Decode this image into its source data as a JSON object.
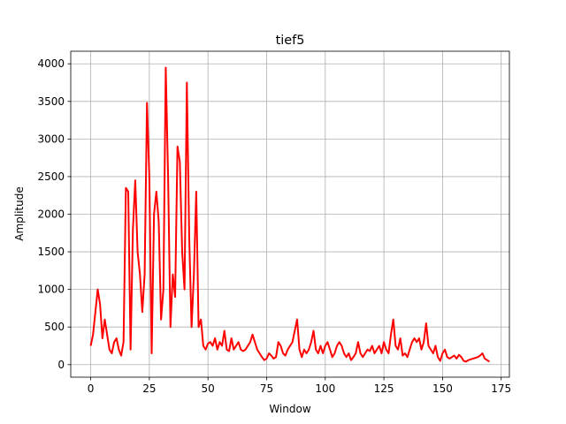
{
  "chart_data": {
    "type": "line",
    "title": "tief5",
    "x_label": "Window",
    "y_label": "Amplitude",
    "x": [
      0,
      1,
      2,
      3,
      4,
      5,
      6,
      7,
      8,
      9,
      10,
      11,
      12,
      13,
      14,
      15,
      16,
      17,
      18,
      19,
      20,
      21,
      22,
      23,
      24,
      25,
      26,
      27,
      28,
      29,
      30,
      31,
      32,
      33,
      34,
      35,
      36,
      37,
      38,
      39,
      40,
      41,
      42,
      43,
      44,
      45,
      46,
      47,
      48,
      49,
      50,
      51,
      52,
      53,
      54,
      55,
      56,
      57,
      58,
      59,
      60,
      61,
      62,
      63,
      64,
      65,
      66,
      67,
      68,
      69,
      70,
      71,
      72,
      73,
      74,
      75,
      76,
      77,
      78,
      79,
      80,
      81,
      82,
      83,
      84,
      85,
      86,
      87,
      88,
      89,
      90,
      91,
      92,
      93,
      94,
      95,
      96,
      97,
      98,
      99,
      100,
      101,
      102,
      103,
      104,
      105,
      106,
      107,
      108,
      109,
      110,
      111,
      112,
      113,
      114,
      115,
      116,
      117,
      118,
      119,
      120,
      121,
      122,
      123,
      124,
      125,
      126,
      127,
      128,
      129,
      130,
      131,
      132,
      133,
      134,
      135,
      136,
      137,
      138,
      139,
      140,
      141,
      142,
      143,
      144,
      145,
      146,
      147,
      148,
      149,
      150,
      151,
      152,
      153,
      154,
      155,
      156,
      157,
      158,
      159,
      160,
      161,
      162,
      163,
      164,
      165,
      166,
      167,
      168,
      169,
      170
    ],
    "series": [
      {
        "color": "#ff0000",
        "values": [
          250,
          400,
          700,
          1000,
          800,
          350,
          600,
          400,
          200,
          150,
          300,
          350,
          200,
          120,
          300,
          2350,
          2300,
          200,
          1800,
          2450,
          1500,
          1200,
          700,
          1200,
          3480,
          2500,
          150,
          2000,
          2300,
          1900,
          600,
          1000,
          3950,
          2500,
          500,
          1200,
          900,
          2900,
          2700,
          1500,
          1000,
          3750,
          1700,
          500,
          1200,
          2300,
          500,
          600,
          250,
          200,
          280,
          300,
          250,
          350,
          200,
          300,
          250,
          450,
          200,
          180,
          350,
          200,
          250,
          300,
          200,
          180,
          200,
          250,
          300,
          400,
          300,
          200,
          150,
          100,
          60,
          80,
          150,
          120,
          80,
          100,
          300,
          250,
          150,
          120,
          200,
          250,
          300,
          450,
          600,
          200,
          100,
          200,
          150,
          200,
          300,
          450,
          200,
          150,
          250,
          150,
          250,
          300,
          200,
          100,
          150,
          250,
          300,
          250,
          150,
          100,
          150,
          60,
          100,
          150,
          300,
          150,
          100,
          150,
          200,
          180,
          250,
          150,
          200,
          250,
          150,
          300,
          200,
          150,
          400,
          600,
          250,
          200,
          350,
          120,
          150,
          100,
          200,
          300,
          350,
          300,
          350,
          200,
          300,
          550,
          250,
          200,
          150,
          250,
          100,
          50,
          150,
          200,
          100,
          80,
          100,
          120,
          80,
          130,
          100,
          50,
          40,
          60,
          70,
          80,
          90,
          100,
          120,
          150,
          80,
          60,
          40
        ]
      }
    ],
    "xlim": [
      -8.5,
      178.5
    ],
    "ylim": [
      -167,
      4167
    ],
    "xticks": [
      0,
      25,
      50,
      75,
      100,
      125,
      150,
      175
    ],
    "yticks": [
      0,
      500,
      1000,
      1500,
      2000,
      2500,
      3000,
      3500,
      4000
    ],
    "grid": true
  }
}
